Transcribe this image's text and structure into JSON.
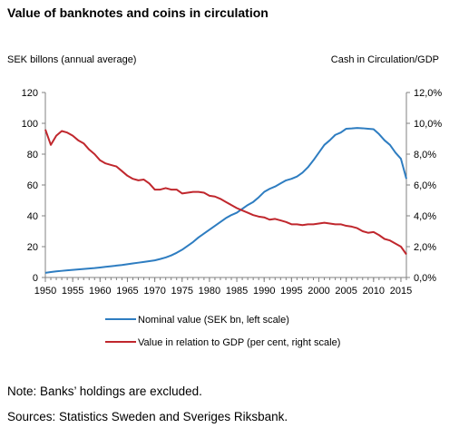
{
  "title": "Value of banknotes and coins in circulation",
  "note": "Note: Banks’ holdings are excluded.",
  "sources": "Sources: Statistics Sweden and Sveriges Riksbank.",
  "chart_data": {
    "type": "line",
    "xlim": [
      1950,
      2016
    ],
    "x_ticks": [
      1950,
      1955,
      1960,
      1965,
      1970,
      1975,
      1980,
      1985,
      1990,
      1995,
      2000,
      2005,
      2010,
      2015
    ],
    "left_axis": {
      "label": "SEK billons (annual average)",
      "ylim": [
        0,
        120
      ],
      "ticks": [
        "0",
        "20",
        "40",
        "60",
        "80",
        "100",
        "120"
      ]
    },
    "right_axis": {
      "label": "Cash in Circulation/GDP",
      "ylim": [
        0,
        12
      ],
      "ticks": [
        "0,0%",
        "2,0%",
        "4,0%",
        "6,0%",
        "8,0%",
        "10,0%",
        "12,0%"
      ]
    },
    "grid": false,
    "legend_position": "bottom",
    "series": [
      {
        "name": "Nominal value (SEK bn, left scale)",
        "axis": "left",
        "color": "#2e7dc1",
        "x": [
          1950,
          1951,
          1952,
          1953,
          1954,
          1955,
          1956,
          1957,
          1958,
          1959,
          1960,
          1961,
          1962,
          1963,
          1964,
          1965,
          1966,
          1967,
          1968,
          1969,
          1970,
          1971,
          1972,
          1973,
          1974,
          1975,
          1976,
          1977,
          1978,
          1979,
          1980,
          1981,
          1982,
          1983,
          1984,
          1985,
          1986,
          1987,
          1988,
          1989,
          1990,
          1991,
          1992,
          1993,
          1994,
          1995,
          1996,
          1997,
          1998,
          1999,
          2000,
          2001,
          2002,
          2003,
          2004,
          2005,
          2006,
          2007,
          2008,
          2009,
          2010,
          2011,
          2012,
          2013,
          2014,
          2015,
          2016
        ],
        "values": [
          3,
          3.5,
          4,
          4.3,
          4.6,
          4.9,
          5.2,
          5.5,
          5.8,
          6.1,
          6.5,
          6.9,
          7.3,
          7.7,
          8.1,
          8.6,
          9.1,
          9.6,
          10.1,
          10.6,
          11.1,
          12,
          13,
          14.3,
          16,
          18,
          20.5,
          23,
          26,
          28.5,
          31,
          33.5,
          36,
          38.5,
          40.5,
          42,
          44.5,
          47,
          49,
          52,
          55.5,
          57.5,
          59,
          61,
          63,
          64,
          65.5,
          68,
          71.5,
          76,
          81,
          86,
          89,
          92.5,
          94,
          96.5,
          96.7,
          97,
          96.8,
          96.5,
          96.2,
          93,
          89,
          86,
          81,
          77,
          64
        ]
      },
      {
        "name": "Value in relation to GDP (per cent, right scale)",
        "axis": "right",
        "color": "#c0272d",
        "x": [
          1950,
          1951,
          1952,
          1953,
          1954,
          1955,
          1956,
          1957,
          1958,
          1959,
          1960,
          1961,
          1962,
          1963,
          1964,
          1965,
          1966,
          1967,
          1968,
          1969,
          1970,
          1971,
          1972,
          1973,
          1974,
          1975,
          1976,
          1977,
          1978,
          1979,
          1980,
          1981,
          1982,
          1983,
          1984,
          1985,
          1986,
          1987,
          1988,
          1989,
          1990,
          1991,
          1992,
          1993,
          1994,
          1995,
          1996,
          1997,
          1998,
          1999,
          2000,
          2001,
          2002,
          2003,
          2004,
          2005,
          2006,
          2007,
          2008,
          2009,
          2010,
          2011,
          2012,
          2013,
          2014,
          2015,
          2016
        ],
        "values": [
          9.6,
          8.6,
          9.2,
          9.5,
          9.4,
          9.2,
          8.9,
          8.7,
          8.3,
          8.0,
          7.6,
          7.4,
          7.3,
          7.2,
          6.9,
          6.6,
          6.4,
          6.3,
          6.35,
          6.1,
          5.7,
          5.7,
          5.8,
          5.7,
          5.7,
          5.45,
          5.5,
          5.55,
          5.55,
          5.5,
          5.3,
          5.25,
          5.1,
          4.9,
          4.7,
          4.5,
          4.35,
          4.2,
          4.05,
          3.95,
          3.9,
          3.75,
          3.8,
          3.7,
          3.6,
          3.45,
          3.45,
          3.4,
          3.45,
          3.45,
          3.5,
          3.55,
          3.5,
          3.45,
          3.45,
          3.35,
          3.3,
          3.2,
          3.0,
          2.9,
          2.95,
          2.75,
          2.5,
          2.4,
          2.2,
          2.0,
          1.5
        ]
      }
    ]
  }
}
